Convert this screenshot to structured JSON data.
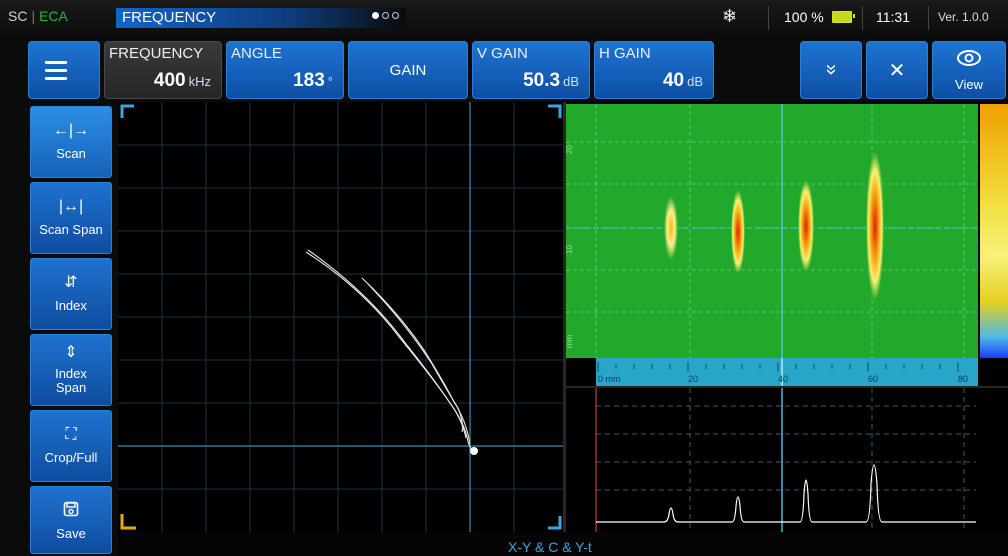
{
  "status": {
    "mode_left": "SC",
    "sep": "|",
    "tech": "ECA",
    "title": "FREQUENCY",
    "snow_icon": "❄",
    "battery": "100 %",
    "time": "11:31",
    "version": "Ver. 1.0.0"
  },
  "toolbar": {
    "frequency": {
      "label": "FREQUENCY",
      "value": "400",
      "unit": "kHz"
    },
    "angle": {
      "label": "ANGLE",
      "value": "183",
      "unit": "°"
    },
    "gain": {
      "label": "GAIN"
    },
    "vgain": {
      "label": "V GAIN",
      "value": "50.3",
      "unit": "dB"
    },
    "hgain": {
      "label": "H GAIN",
      "value": "40",
      "unit": "dB"
    },
    "more_icon": "»",
    "close_icon": "✕",
    "view_label": "View"
  },
  "sidebar": {
    "items": [
      {
        "label": "Scan",
        "icon": "←|→"
      },
      {
        "label": "Scan Span",
        "icon": "|↔|"
      },
      {
        "label": "Index",
        "icon": "⇵"
      },
      {
        "label": "Index Span",
        "icon": "⇕"
      },
      {
        "label": "Crop/Full",
        "icon": "⛶"
      },
      {
        "label": "Save",
        "icon": "💾"
      }
    ]
  },
  "views": {
    "bottom_label": "X-Y & C & Y-t"
  },
  "cscan": {
    "ruler_labels": [
      "0 mm",
      "20",
      "40",
      "60",
      "80"
    ],
    "side_labels": [
      "20",
      "10",
      "mm"
    ]
  }
}
